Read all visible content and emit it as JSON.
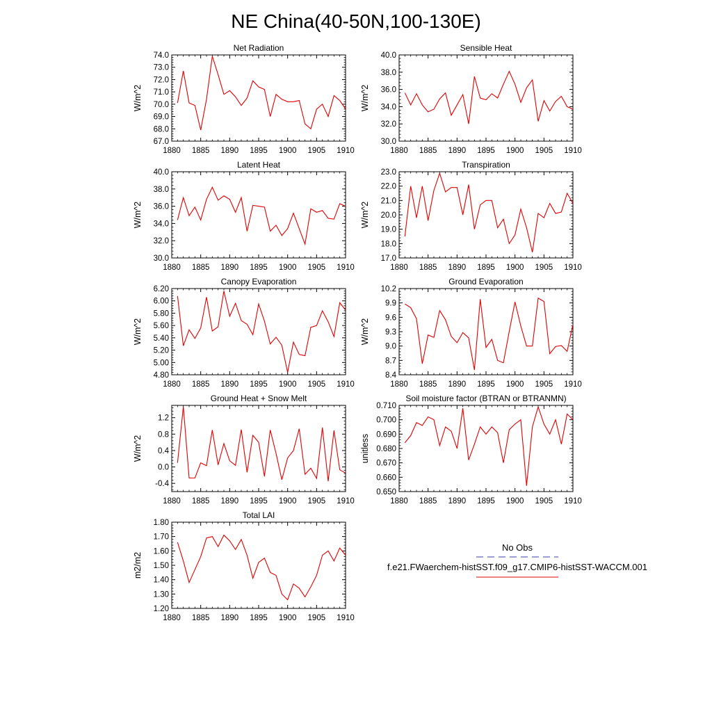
{
  "title": "NE China(40-50N,100-130E)",
  "legend": {
    "obs_label": "No Obs",
    "obs_color": "#3a3aa8",
    "model_label": "f.e21.FWaerchem-histSST.f09_g17.CMIP6-histSST-WACCM.001",
    "model_color": "#e00000"
  },
  "chart_data": [
    {
      "type": "line",
      "title": "Net Radiation",
      "ylabel": "W/m^2",
      "xlim": [
        1880,
        1910
      ],
      "xticks": [
        "1880",
        "1885",
        "1890",
        "1895",
        "1900",
        "1905",
        "1910"
      ],
      "ylim": [
        67,
        74
      ],
      "yticks": [
        "67.0",
        "68.0",
        "69.0",
        "70.0",
        "71.0",
        "72.0",
        "73.0",
        "74.0"
      ],
      "x": [
        1881,
        1882,
        1883,
        1884,
        1885,
        1886,
        1887,
        1888,
        1889,
        1890,
        1891,
        1892,
        1893,
        1894,
        1895,
        1896,
        1897,
        1898,
        1899,
        1900,
        1901,
        1902,
        1903,
        1904,
        1905,
        1906,
        1907,
        1908,
        1909,
        1910
      ],
      "series": [
        {
          "values": [
            70.1,
            72.7,
            70.1,
            69.9,
            67.9,
            70.4,
            73.9,
            72.4,
            70.8,
            71.1,
            70.6,
            69.9,
            70.5,
            71.9,
            71.4,
            71.2,
            69.0,
            70.8,
            70.4,
            70.2,
            70.2,
            70.3,
            68.4,
            68.0,
            69.6,
            70.0,
            69.0,
            70.7,
            70.3,
            69.6
          ]
        }
      ]
    },
    {
      "type": "line",
      "title": "Sensible Heat",
      "ylabel": "W/m^2",
      "xlim": [
        1880,
        1910
      ],
      "xticks": [
        "1880",
        "1885",
        "1890",
        "1895",
        "1900",
        "1905",
        "1910"
      ],
      "ylim": [
        30,
        40
      ],
      "yticks": [
        "30.0",
        "32.0",
        "34.0",
        "36.0",
        "38.0",
        "40.0"
      ],
      "x": [
        1881,
        1882,
        1883,
        1884,
        1885,
        1886,
        1887,
        1888,
        1889,
        1890,
        1891,
        1892,
        1893,
        1894,
        1895,
        1896,
        1897,
        1898,
        1899,
        1900,
        1901,
        1902,
        1903,
        1904,
        1905,
        1906,
        1907,
        1908,
        1909,
        1910
      ],
      "series": [
        {
          "values": [
            35.6,
            34.2,
            35.5,
            34.2,
            33.4,
            33.7,
            34.9,
            35.6,
            33.0,
            34.2,
            35.4,
            32.0,
            37.5,
            35.0,
            34.8,
            35.5,
            35.0,
            36.6,
            38.1,
            36.6,
            34.5,
            36.2,
            37.1,
            32.3,
            34.7,
            33.5,
            34.6,
            35.2,
            34.0,
            33.7
          ]
        }
      ]
    },
    {
      "type": "line",
      "title": "Latent Heat",
      "ylabel": "W/m^2",
      "xlim": [
        1880,
        1910
      ],
      "xticks": [
        "1880",
        "1885",
        "1890",
        "1895",
        "1900",
        "1905",
        "1910"
      ],
      "ylim": [
        30,
        40
      ],
      "yticks": [
        "30.0",
        "32.0",
        "34.0",
        "36.0",
        "38.0",
        "40.0"
      ],
      "x": [
        1881,
        1882,
        1883,
        1884,
        1885,
        1886,
        1887,
        1888,
        1889,
        1890,
        1891,
        1892,
        1893,
        1894,
        1895,
        1896,
        1897,
        1898,
        1899,
        1900,
        1901,
        1902,
        1903,
        1904,
        1905,
        1906,
        1907,
        1908,
        1909,
        1910
      ],
      "series": [
        {
          "values": [
            34.4,
            37.0,
            34.9,
            35.9,
            34.4,
            36.8,
            38.2,
            36.7,
            37.2,
            36.8,
            35.3,
            37.0,
            33.1,
            36.1,
            36.0,
            35.9,
            33.1,
            33.8,
            32.6,
            33.4,
            35.2,
            33.4,
            31.6,
            35.7,
            35.3,
            35.5,
            34.6,
            34.5,
            36.3,
            36.0
          ]
        }
      ]
    },
    {
      "type": "line",
      "title": "Transpiration",
      "ylabel": "W/m^2",
      "xlim": [
        1880,
        1910
      ],
      "xticks": [
        "1880",
        "1885",
        "1890",
        "1895",
        "1900",
        "1905",
        "1910"
      ],
      "ylim": [
        17,
        23
      ],
      "yticks": [
        "17.0",
        "18.0",
        "19.0",
        "20.0",
        "21.0",
        "22.0",
        "23.0"
      ],
      "x": [
        1881,
        1882,
        1883,
        1884,
        1885,
        1886,
        1887,
        1888,
        1889,
        1890,
        1891,
        1892,
        1893,
        1894,
        1895,
        1896,
        1897,
        1898,
        1899,
        1900,
        1901,
        1902,
        1903,
        1904,
        1905,
        1906,
        1907,
        1908,
        1909,
        1910
      ],
      "series": [
        {
          "values": [
            18.5,
            22.0,
            19.8,
            22.0,
            19.6,
            21.7,
            22.9,
            21.6,
            21.9,
            21.9,
            20.0,
            22.1,
            19.0,
            20.7,
            21.0,
            21.0,
            19.1,
            19.7,
            18.0,
            18.6,
            20.4,
            19.1,
            17.4,
            20.1,
            19.8,
            20.8,
            20.1,
            20.2,
            21.5,
            20.8
          ]
        }
      ]
    },
    {
      "type": "line",
      "title": "Canopy Evaporation",
      "ylabel": "W/m^2",
      "xlim": [
        1880,
        1910
      ],
      "xticks": [
        "1880",
        "1885",
        "1890",
        "1895",
        "1900",
        "1905",
        "1910"
      ],
      "ylim": [
        4.8,
        6.2
      ],
      "yticks": [
        "4.80",
        "5.00",
        "5.20",
        "5.40",
        "5.60",
        "5.80",
        "6.00",
        "6.20"
      ],
      "x": [
        1881,
        1882,
        1883,
        1884,
        1885,
        1886,
        1887,
        1888,
        1889,
        1890,
        1891,
        1892,
        1893,
        1894,
        1895,
        1896,
        1897,
        1898,
        1899,
        1900,
        1901,
        1902,
        1903,
        1904,
        1905,
        1906,
        1907,
        1908,
        1909,
        1910
      ],
      "series": [
        {
          "values": [
            6.08,
            5.27,
            5.53,
            5.39,
            5.56,
            6.06,
            5.51,
            5.58,
            6.16,
            5.75,
            5.96,
            5.68,
            5.62,
            5.45,
            5.95,
            5.67,
            5.3,
            5.41,
            5.28,
            4.84,
            5.33,
            5.13,
            5.11,
            5.57,
            5.6,
            5.84,
            5.66,
            5.42,
            5.97,
            5.85
          ]
        }
      ]
    },
    {
      "type": "line",
      "title": "Ground Evaporation",
      "ylabel": "W/m^2",
      "xlim": [
        1880,
        1910
      ],
      "xticks": [
        "1880",
        "1885",
        "1890",
        "1895",
        "1900",
        "1905",
        "1910"
      ],
      "ylim": [
        8.4,
        10.2
      ],
      "yticks": [
        "8.4",
        "8.7",
        "9.0",
        "9.3",
        "9.6",
        "9.9",
        "10.2"
      ],
      "x": [
        1881,
        1882,
        1883,
        1884,
        1885,
        1886,
        1887,
        1888,
        1889,
        1890,
        1891,
        1892,
        1893,
        1894,
        1895,
        1896,
        1897,
        1898,
        1899,
        1900,
        1901,
        1902,
        1903,
        1904,
        1905,
        1906,
        1907,
        1908,
        1909,
        1910
      ],
      "series": [
        {
          "values": [
            9.88,
            9.8,
            9.57,
            8.63,
            9.23,
            9.18,
            9.74,
            9.55,
            9.2,
            9.07,
            9.28,
            9.17,
            8.5,
            9.98,
            8.97,
            9.14,
            8.7,
            8.65,
            9.3,
            9.92,
            9.42,
            9.0,
            9.0,
            10.0,
            9.93,
            8.84,
            8.99,
            9.01,
            8.89,
            9.45
          ]
        }
      ]
    },
    {
      "type": "line",
      "title": "Ground Heat + Snow Melt",
      "ylabel": "W/m^2",
      "xlim": [
        1880,
        1910
      ],
      "xticks": [
        "1880",
        "1885",
        "1890",
        "1895",
        "1900",
        "1905",
        "1910"
      ],
      "ylim": [
        -0.6,
        1.5
      ],
      "yticks": [
        "-0.4",
        "0.0",
        "0.4",
        "0.8",
        "1.2"
      ],
      "ytick_values": [
        -0.4,
        0.0,
        0.4,
        0.8,
        1.2
      ],
      "x": [
        1881,
        1882,
        1883,
        1884,
        1885,
        1886,
        1887,
        1888,
        1889,
        1890,
        1891,
        1892,
        1893,
        1894,
        1895,
        1896,
        1897,
        1898,
        1899,
        1900,
        1901,
        1902,
        1903,
        1904,
        1905,
        1906,
        1907,
        1908,
        1909,
        1910
      ],
      "series": [
        {
          "values": [
            0.1,
            1.47,
            -0.27,
            -0.27,
            0.1,
            0.03,
            0.9,
            0.05,
            0.57,
            0.15,
            0.04,
            0.91,
            -0.13,
            0.77,
            0.6,
            -0.23,
            0.9,
            0.33,
            -0.31,
            0.22,
            0.4,
            0.93,
            -0.18,
            -0.03,
            -0.28,
            0.96,
            -0.35,
            0.89,
            -0.07,
            -0.15
          ]
        }
      ]
    },
    {
      "type": "line",
      "title": "Soil moisture factor (BTRAN or BTRANMN)",
      "ylabel": "unitless",
      "xlim": [
        1880,
        1910
      ],
      "xticks": [
        "1880",
        "1885",
        "1890",
        "1895",
        "1900",
        "1905",
        "1910"
      ],
      "ylim": [
        0.65,
        0.71
      ],
      "yticks": [
        "0.650",
        "0.660",
        "0.670",
        "0.680",
        "0.690",
        "0.700",
        "0.710"
      ],
      "x": [
        1881,
        1882,
        1883,
        1884,
        1885,
        1886,
        1887,
        1888,
        1889,
        1890,
        1891,
        1892,
        1893,
        1894,
        1895,
        1896,
        1897,
        1898,
        1899,
        1900,
        1901,
        1902,
        1903,
        1904,
        1905,
        1906,
        1907,
        1908,
        1909,
        1910
      ],
      "series": [
        {
          "values": [
            0.684,
            0.689,
            0.698,
            0.696,
            0.702,
            0.7,
            0.682,
            0.695,
            0.692,
            0.68,
            0.708,
            0.672,
            0.683,
            0.695,
            0.69,
            0.695,
            0.691,
            0.67,
            0.693,
            0.697,
            0.7,
            0.654,
            0.695,
            0.709,
            0.697,
            0.69,
            0.7,
            0.683,
            0.704,
            0.7
          ]
        }
      ]
    },
    {
      "type": "line",
      "title": "Total LAI",
      "ylabel": "m2/m2",
      "xlim": [
        1880,
        1910
      ],
      "xticks": [
        "1880",
        "1885",
        "1890",
        "1895",
        "1900",
        "1905",
        "1910"
      ],
      "ylim": [
        1.2,
        1.8
      ],
      "yticks": [
        "1.20",
        "1.30",
        "1.40",
        "1.50",
        "1.60",
        "1.70",
        "1.80"
      ],
      "x": [
        1881,
        1882,
        1883,
        1884,
        1885,
        1886,
        1887,
        1888,
        1889,
        1890,
        1891,
        1892,
        1893,
        1894,
        1895,
        1896,
        1897,
        1898,
        1899,
        1900,
        1901,
        1902,
        1903,
        1904,
        1905,
        1906,
        1907,
        1908,
        1909,
        1910
      ],
      "series": [
        {
          "values": [
            1.66,
            1.53,
            1.38,
            1.47,
            1.56,
            1.69,
            1.7,
            1.63,
            1.71,
            1.67,
            1.61,
            1.68,
            1.57,
            1.41,
            1.52,
            1.55,
            1.45,
            1.43,
            1.3,
            1.26,
            1.37,
            1.34,
            1.28,
            1.35,
            1.43,
            1.57,
            1.6,
            1.53,
            1.62,
            1.57
          ]
        }
      ]
    }
  ]
}
